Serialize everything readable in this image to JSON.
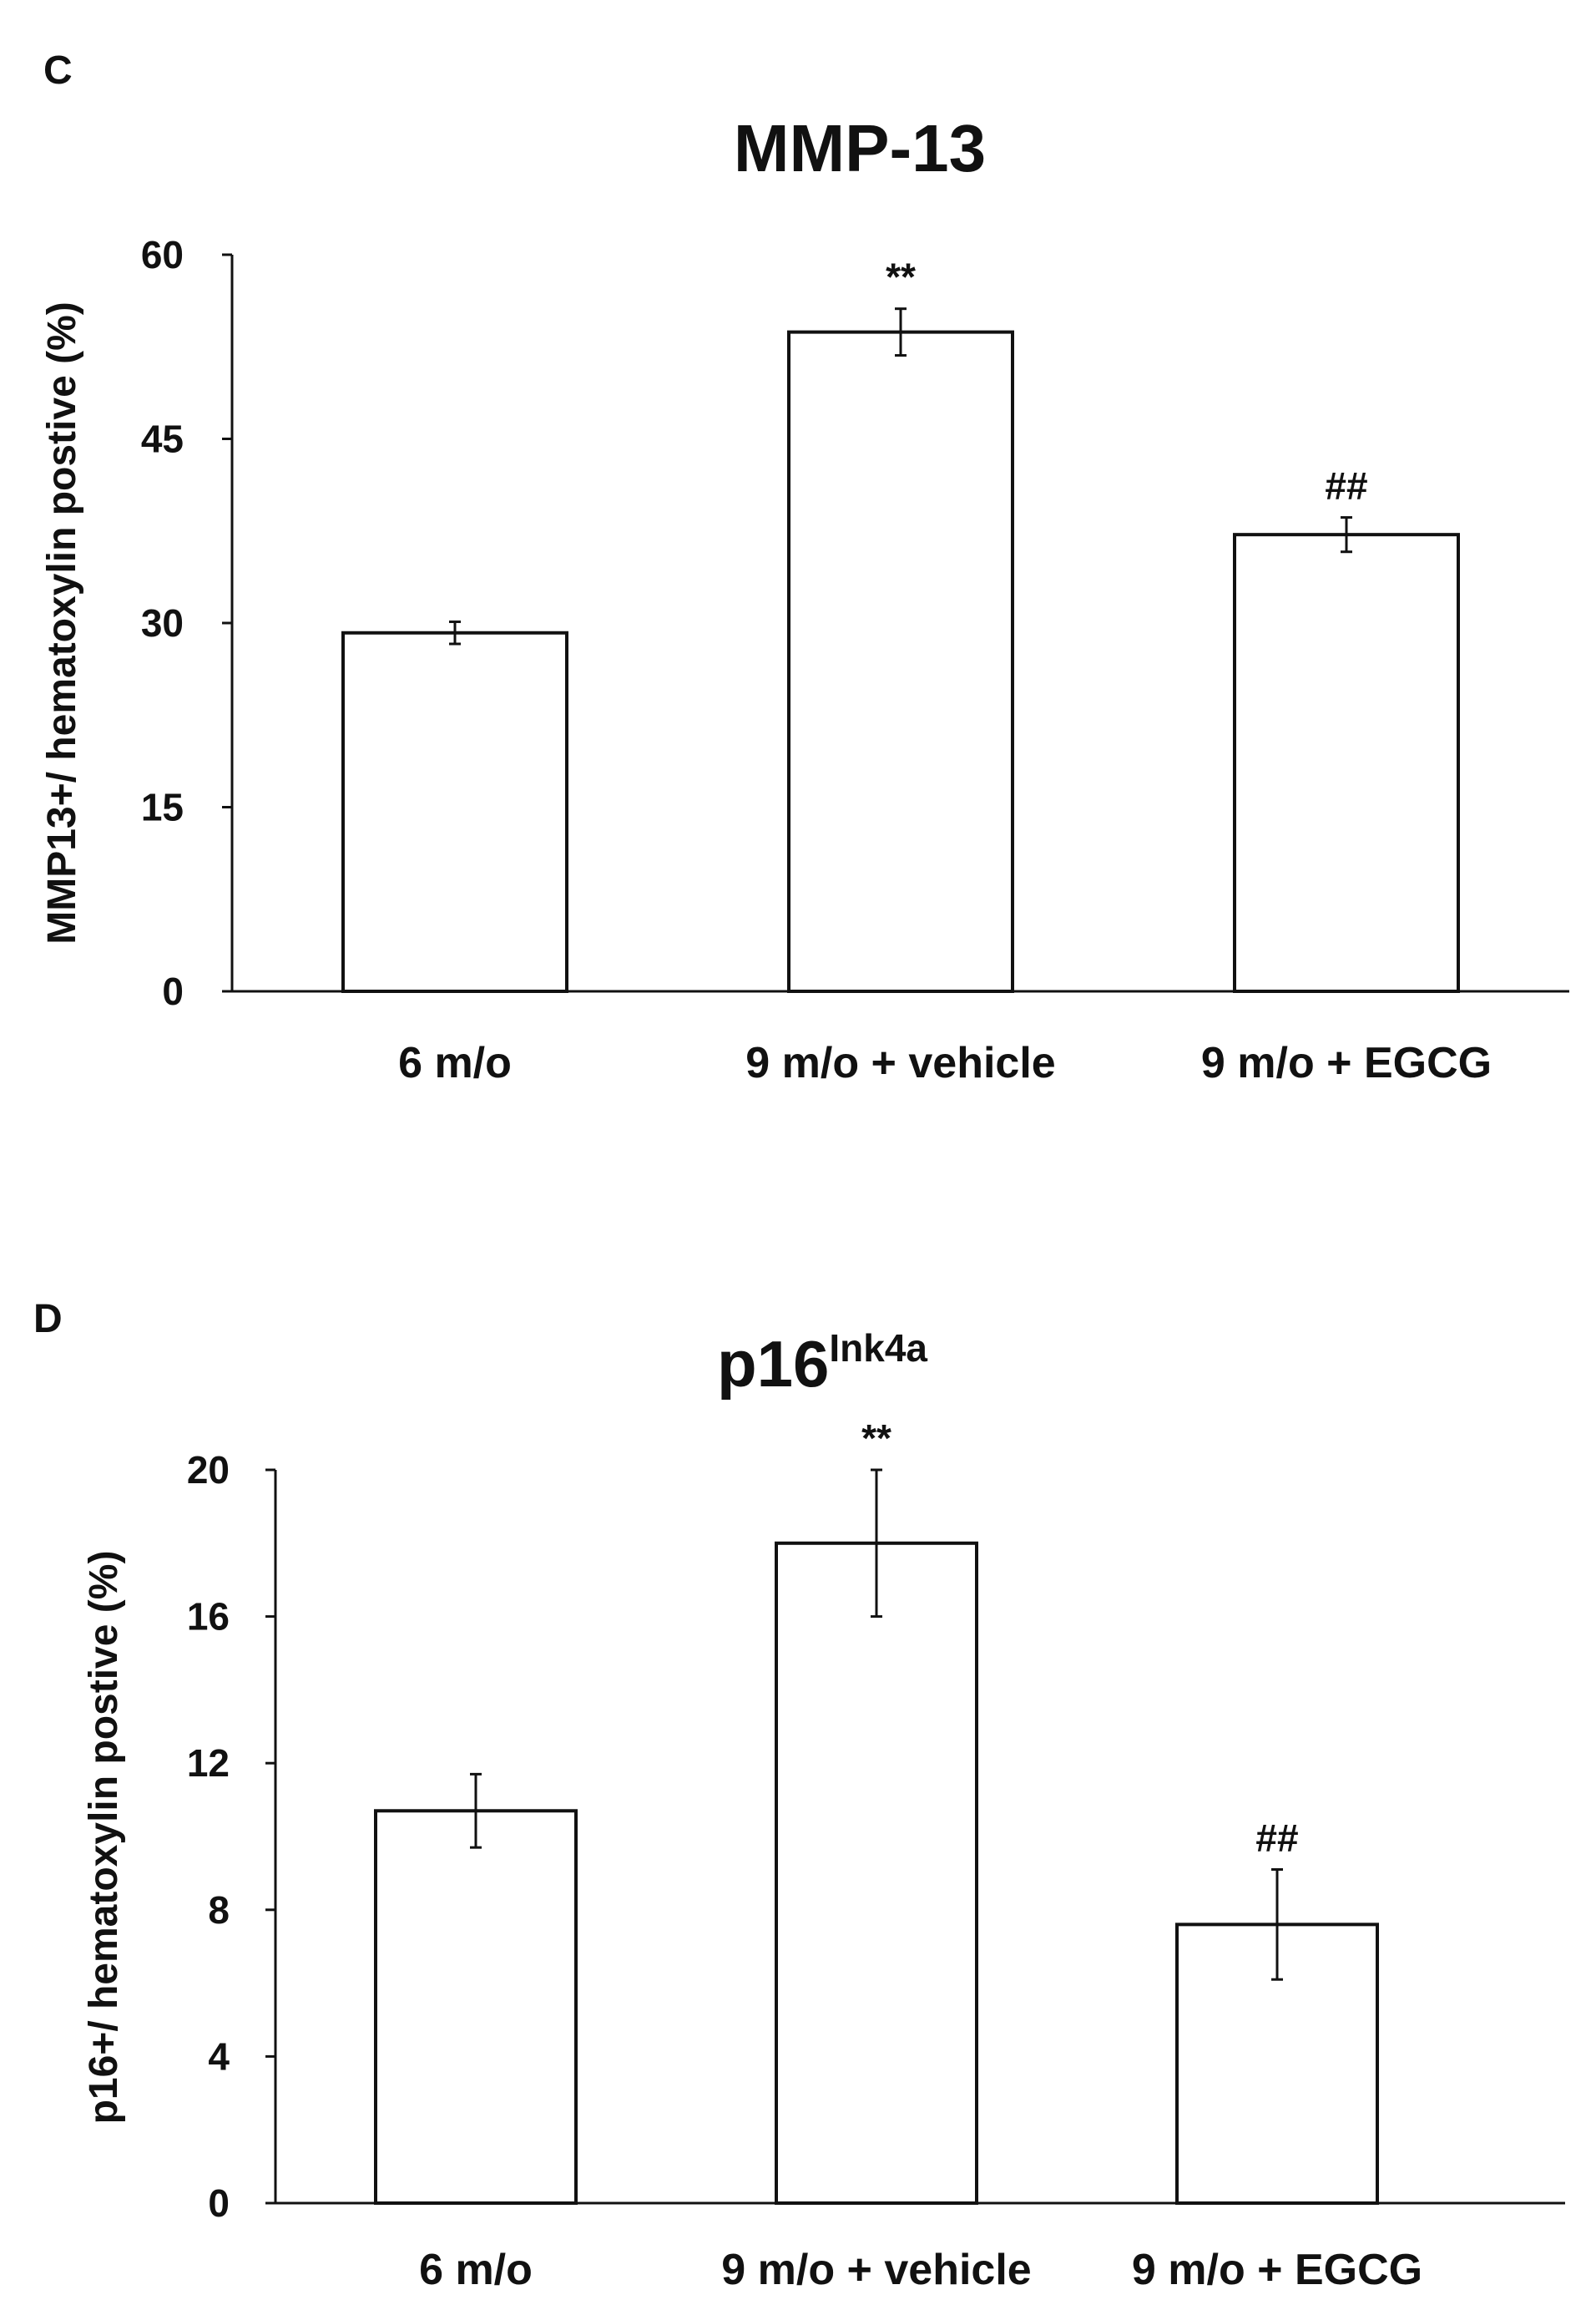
{
  "chart_data": [
    {
      "panel_label": "C",
      "type": "bar",
      "title": "MMP-13",
      "title_superscript": "",
      "xlabel": "",
      "ylabel": "MMP13+/ hematoxylin postive (%)",
      "ylim": [
        0,
        60
      ],
      "yticks": [
        0,
        15,
        30,
        45,
        60
      ],
      "grid": false,
      "categories": [
        "6 m/o",
        "9 m/o + vehicle",
        "9 m/o + EGCG"
      ],
      "values": [
        29.2,
        53.7,
        37.2
      ],
      "errors": [
        0.9,
        1.9,
        1.4
      ],
      "annotations": [
        "",
        "**",
        "##"
      ],
      "bar_fill": "#ffffff",
      "bar_stroke": "#111111"
    },
    {
      "panel_label": "D",
      "type": "bar",
      "title": "p16",
      "title_superscript": "Ink4a",
      "xlabel": "",
      "ylabel": "p16+/ hematoxylin postive (%)",
      "ylim": [
        0,
        20
      ],
      "yticks": [
        0,
        4,
        8,
        12,
        16,
        20
      ],
      "grid": false,
      "categories": [
        "6 m/o",
        "9 m/o + vehicle",
        "9 m/o + EGCG"
      ],
      "values": [
        10.7,
        18.0,
        7.6
      ],
      "errors": [
        1.0,
        2.0,
        1.5
      ],
      "annotations": [
        "",
        "**",
        "##"
      ],
      "bar_fill": "#ffffff",
      "bar_stroke": "#111111"
    }
  ]
}
